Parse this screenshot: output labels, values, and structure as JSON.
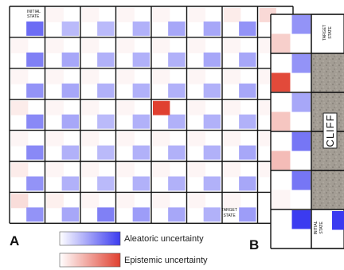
{
  "panelA": {
    "letter": "A",
    "rows": 7,
    "cols": 8,
    "initial_label_line1": "INITIAL",
    "initial_label_line2": "STATE",
    "target_label_line1": "TARGET",
    "target_label_line2": "STATE",
    "epistemic_hot_cell": {
      "row": 3,
      "col": 4,
      "value": 1.0
    },
    "aleatoric": [
      [
        0.75,
        0.35,
        0.35,
        0.4,
        0.45,
        0.45,
        0.55,
        0.6
      ],
      [
        0.65,
        0.45,
        0.4,
        0.4,
        0.4,
        0.45,
        0.45,
        0.55
      ],
      [
        0.55,
        0.45,
        0.4,
        0.4,
        0.4,
        0.4,
        0.45,
        0.55
      ],
      [
        0.6,
        0.45,
        0.35,
        0.4,
        0.4,
        0.4,
        0.4,
        0.5
      ],
      [
        0.6,
        0.4,
        0.35,
        0.4,
        0.4,
        0.4,
        0.45,
        0.55
      ],
      [
        0.55,
        0.4,
        0.35,
        0.4,
        0.4,
        0.4,
        0.45,
        0.55
      ],
      [
        0.55,
        0.45,
        0.65,
        0.5,
        0.45,
        0.4,
        0.5,
        0.0
      ]
    ],
    "epistemic_corner": [
      [
        0.0,
        0.05,
        0.05,
        0.05,
        0.05,
        0.05,
        0.1,
        0.2
      ],
      [
        0.05,
        0.05,
        0.05,
        0.05,
        0.05,
        0.05,
        0.05,
        0.05
      ],
      [
        0.05,
        0.05,
        0.05,
        0.05,
        0.05,
        0.05,
        0.05,
        0.05
      ],
      [
        0.1,
        0.05,
        0.05,
        0.05,
        0.0,
        0.05,
        0.05,
        0.05
      ],
      [
        0.05,
        0.05,
        0.05,
        0.05,
        0.05,
        0.05,
        0.05,
        0.05
      ],
      [
        0.1,
        0.05,
        0.05,
        0.05,
        0.05,
        0.05,
        0.05,
        0.05
      ],
      [
        0.18,
        0.08,
        0.05,
        0.05,
        0.05,
        0.05,
        0.05,
        0.0
      ]
    ]
  },
  "panelB": {
    "letter": "B",
    "cliff_label": "CLIFF",
    "target_label_line1": "TARGET",
    "target_label_line2": "STATE",
    "initial_label_line1": "INITIAL",
    "initial_label_line2": "STATE",
    "rows": [
      {
        "aleatoric": 0.55,
        "epistemic": 0.25
      },
      {
        "aleatoric": 0.55,
        "epistemic": 0.95
      },
      {
        "aleatoric": 0.45,
        "epistemic": 0.3
      },
      {
        "aleatoric": 0.7,
        "epistemic": 0.35
      },
      {
        "aleatoric": 0.7,
        "epistemic": 0.05
      },
      {
        "aleatoric": 1.0,
        "epistemic": 0.0
      }
    ]
  },
  "legend": {
    "aleatoric_label": "Aleatoric uncertainty",
    "epistemic_label": "Epistemic uncertainty",
    "aleatoric_color": "#3b3bf0",
    "epistemic_color": "#e04030"
  }
}
